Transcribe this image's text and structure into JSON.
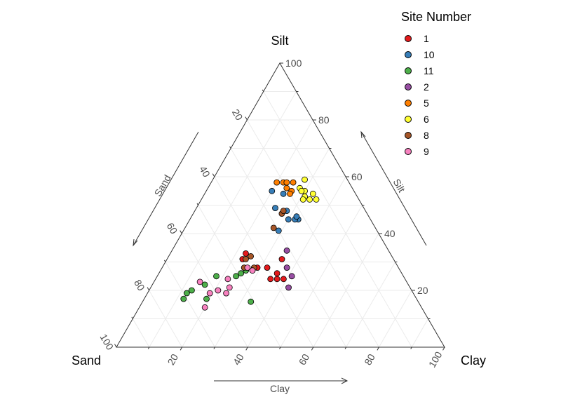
{
  "chart_data": {
    "type": "scatter",
    "subtype": "ternary",
    "axes": {
      "top": {
        "name": "Silt",
        "arrow_label": "Silt"
      },
      "left": {
        "name": "Sand",
        "arrow_label": "Sand"
      },
      "right": {
        "name": "Clay",
        "arrow_label": "Clay"
      }
    },
    "ticks": [
      "20",
      "40",
      "60",
      "80",
      "100"
    ],
    "range": [
      0,
      100
    ],
    "grid": true,
    "legend": {
      "title": "Site Number",
      "position": "top-right"
    },
    "series": [
      {
        "name": "1",
        "color": "#E41A1C",
        "points": [
          {
            "sand": 46,
            "silt": 31,
            "clay": 23
          },
          {
            "sand": 44,
            "silt": 33,
            "clay": 23
          },
          {
            "sand": 43,
            "silt": 28,
            "clay": 29
          },
          {
            "sand": 40,
            "silt": 28,
            "clay": 32
          },
          {
            "sand": 38,
            "silt": 26,
            "clay": 36
          },
          {
            "sand": 34,
            "silt": 31,
            "clay": 35
          },
          {
            "sand": 37,
            "silt": 24,
            "clay": 39
          },
          {
            "sand": 41,
            "silt": 24,
            "clay": 35
          },
          {
            "sand": 39,
            "silt": 24,
            "clay": 37
          }
        ]
      },
      {
        "name": "10",
        "color": "#377EB8",
        "points": [
          {
            "sand": 25,
            "silt": 55,
            "clay": 20
          },
          {
            "sand": 22,
            "silt": 54,
            "clay": 24
          },
          {
            "sand": 27,
            "silt": 49,
            "clay": 24
          },
          {
            "sand": 24,
            "silt": 48,
            "clay": 28
          },
          {
            "sand": 22,
            "silt": 45,
            "clay": 33
          },
          {
            "sand": 25,
            "silt": 45,
            "clay": 30
          },
          {
            "sand": 23,
            "silt": 45,
            "clay": 32
          },
          {
            "sand": 22,
            "silt": 46,
            "clay": 32
          },
          {
            "sand": 30,
            "silt": 41,
            "clay": 29
          }
        ]
      },
      {
        "name": "11",
        "color": "#4DAF4A",
        "points": [
          {
            "sand": 71,
            "silt": 17,
            "clay": 12
          },
          {
            "sand": 69,
            "silt": 19,
            "clay": 12
          },
          {
            "sand": 67,
            "silt": 20,
            "clay": 13
          },
          {
            "sand": 64,
            "silt": 17,
            "clay": 19
          },
          {
            "sand": 62,
            "silt": 22,
            "clay": 16
          },
          {
            "sand": 57,
            "silt": 25,
            "clay": 18
          },
          {
            "sand": 51,
            "silt": 25,
            "clay": 24
          },
          {
            "sand": 49,
            "silt": 26,
            "clay": 25
          },
          {
            "sand": 47,
            "silt": 27,
            "clay": 26
          },
          {
            "sand": 51,
            "silt": 16,
            "clay": 33
          }
        ]
      },
      {
        "name": "2",
        "color": "#984EA3",
        "points": [
          {
            "sand": 31,
            "silt": 34,
            "clay": 35
          },
          {
            "sand": 34,
            "silt": 28,
            "clay": 38
          },
          {
            "sand": 34,
            "silt": 25,
            "clay": 41
          },
          {
            "sand": 37,
            "silt": 21,
            "clay": 42
          }
        ]
      },
      {
        "name": "5",
        "color": "#FF7F00",
        "points": [
          {
            "sand": 22,
            "silt": 58,
            "clay": 20
          },
          {
            "sand": 20,
            "silt": 58,
            "clay": 22
          },
          {
            "sand": 19,
            "silt": 58,
            "clay": 23
          },
          {
            "sand": 17,
            "silt": 58,
            "clay": 25
          },
          {
            "sand": 20,
            "silt": 56,
            "clay": 24
          },
          {
            "sand": 19,
            "silt": 55,
            "clay": 26
          },
          {
            "sand": 20,
            "silt": 54,
            "clay": 26
          }
        ]
      },
      {
        "name": "6",
        "color": "#FFFF33",
        "points": [
          {
            "sand": 13,
            "silt": 59,
            "clay": 28
          },
          {
            "sand": 16,
            "silt": 56,
            "clay": 28
          },
          {
            "sand": 15,
            "silt": 55,
            "clay": 30
          },
          {
            "sand": 16,
            "silt": 55,
            "clay": 29
          },
          {
            "sand": 16,
            "silt": 53,
            "clay": 31
          },
          {
            "sand": 13,
            "silt": 54,
            "clay": 33
          },
          {
            "sand": 17,
            "silt": 52,
            "clay": 31
          },
          {
            "sand": 13,
            "silt": 52,
            "clay": 35
          },
          {
            "sand": 15,
            "silt": 52,
            "clay": 33
          }
        ]
      },
      {
        "name": "8",
        "color": "#A65628",
        "points": [
          {
            "sand": 26,
            "silt": 47,
            "clay": 27
          },
          {
            "sand": 25,
            "silt": 48,
            "clay": 27
          },
          {
            "sand": 31,
            "silt": 42,
            "clay": 27
          },
          {
            "sand": 45,
            "silt": 31,
            "clay": 24
          },
          {
            "sand": 43,
            "silt": 32,
            "clay": 25
          },
          {
            "sand": 47,
            "silt": 28,
            "clay": 25
          },
          {
            "sand": 44,
            "silt": 28,
            "clay": 28
          }
        ]
      },
      {
        "name": "9",
        "color": "#F781BF",
        "points": [
          {
            "sand": 63,
            "silt": 23,
            "clay": 14
          },
          {
            "sand": 62,
            "silt": 19,
            "clay": 19
          },
          {
            "sand": 59,
            "silt": 20,
            "clay": 21
          },
          {
            "sand": 57,
            "silt": 19,
            "clay": 24
          },
          {
            "sand": 54,
            "silt": 24,
            "clay": 22
          },
          {
            "sand": 66,
            "silt": 14,
            "clay": 20
          },
          {
            "sand": 55,
            "silt": 21,
            "clay": 24
          },
          {
            "sand": 46,
            "silt": 28,
            "clay": 26
          },
          {
            "sand": 45,
            "silt": 27,
            "clay": 28
          }
        ]
      }
    ]
  }
}
